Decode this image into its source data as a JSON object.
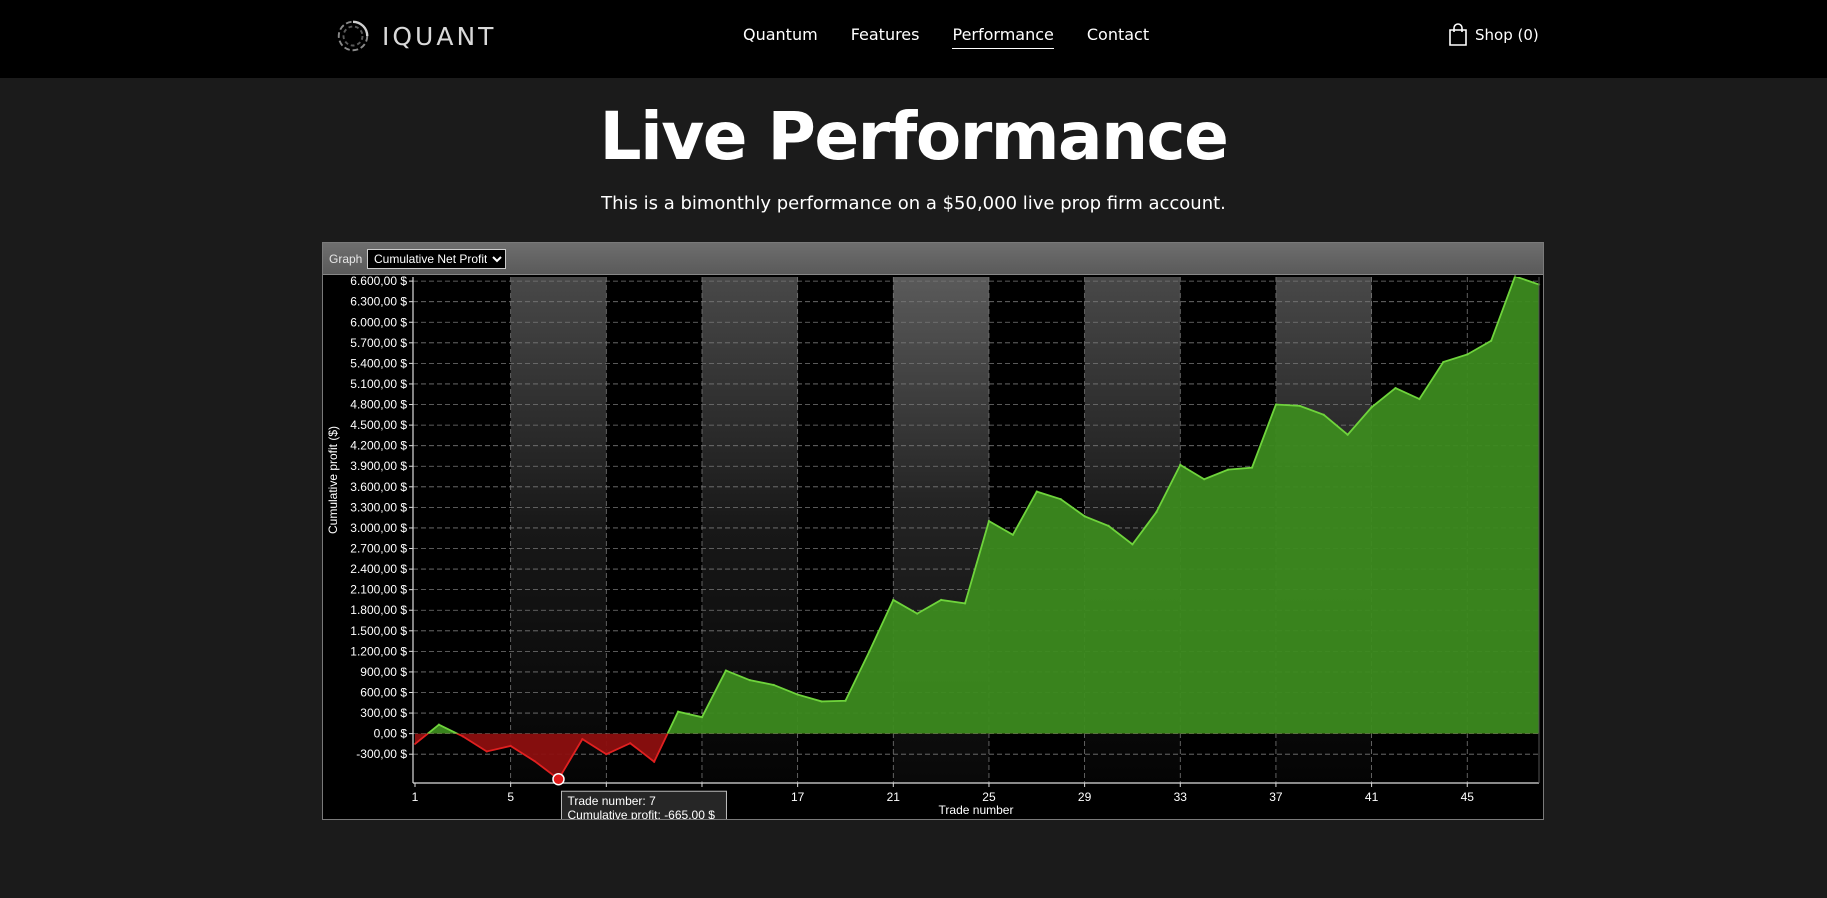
{
  "brand": {
    "name": "IQUANT"
  },
  "nav": {
    "links": [
      {
        "label": "Quantum"
      },
      {
        "label": "Features"
      },
      {
        "label": "Performance",
        "active": true
      },
      {
        "label": "Contact"
      }
    ],
    "shop_label": "Shop (0)"
  },
  "hero": {
    "title": "Live Performance",
    "subtitle": "This is a bimonthly performance on a $50,000 live prop firm account."
  },
  "graph_panel": {
    "label": "Graph",
    "selected_option": "Cumulative Net Profit"
  },
  "colors": {
    "page_background": "#1b1b1b",
    "navbar": "#000000",
    "profit_fill": "#3c8a1f",
    "profit_line": "#6fd43c",
    "loss_fill": "#8c0f0f",
    "loss_line": "#e02020"
  },
  "chart_data": {
    "type": "area",
    "xlabel": "Trade number",
    "ylabel": "Cumulative profit ($)",
    "x": [
      1,
      2,
      3,
      4,
      5,
      6,
      7,
      8,
      9,
      10,
      11,
      12,
      13,
      14,
      15,
      16,
      17,
      18,
      19,
      20,
      21,
      22,
      23,
      24,
      25,
      26,
      27,
      28,
      29,
      30,
      31,
      32,
      33,
      34,
      35,
      36,
      37,
      38,
      39,
      40,
      41,
      42,
      43,
      44,
      45,
      46,
      47,
      48
    ],
    "values": [
      -150,
      130,
      -40,
      -260,
      -180,
      -400,
      -665,
      -80,
      -300,
      -140,
      -410,
      320,
      240,
      920,
      780,
      710,
      570,
      470,
      480,
      1200,
      1950,
      1750,
      1950,
      1900,
      3100,
      2900,
      3530,
      3420,
      3170,
      3030,
      2760,
      3230,
      3920,
      3710,
      3850,
      3880,
      4800,
      4780,
      4650,
      4360,
      4760,
      5040,
      4880,
      5420,
      5530,
      5730,
      6670,
      6550
    ],
    "ylim": [
      -720,
      6660
    ],
    "yticks": [
      "6.600,00 $",
      "6.300,00 $",
      "6.000,00 $",
      "5.700,00 $",
      "5.400,00 $",
      "5.100,00 $",
      "4.800,00 $",
      "4.500,00 $",
      "4.200,00 $",
      "3.900,00 $",
      "3.600,00 $",
      "3.300,00 $",
      "3.000,00 $",
      "2.700,00 $",
      "2.400,00 $",
      "2.100,00 $",
      "1.800,00 $",
      "1.500,00 $",
      "1.200,00 $",
      "900,00 $",
      "600,00 $",
      "300,00 $",
      "0,00 $",
      "-300,00 $"
    ],
    "ytick_values": [
      6600,
      6300,
      6000,
      5700,
      5400,
      5100,
      4800,
      4500,
      4200,
      3900,
      3600,
      3300,
      3000,
      2700,
      2400,
      2100,
      1800,
      1500,
      1200,
      900,
      600,
      300,
      0,
      -300
    ],
    "xticks": [
      "1",
      "5",
      "9",
      "13",
      "17",
      "21",
      "25",
      "29",
      "33",
      "37",
      "41",
      "45"
    ],
    "xtick_values": [
      1,
      5,
      9,
      13,
      17,
      21,
      25,
      29,
      33,
      37,
      41,
      45
    ],
    "xtick_visible": [
      true,
      true,
      false,
      false,
      true,
      true,
      true,
      true,
      true,
      true,
      true,
      true
    ],
    "grid": true,
    "highlighted_point": {
      "x": 7,
      "y": -665
    },
    "tooltip": {
      "line1": "Trade number: 7",
      "line2": "Cumulative profit: -665,00 $"
    }
  }
}
